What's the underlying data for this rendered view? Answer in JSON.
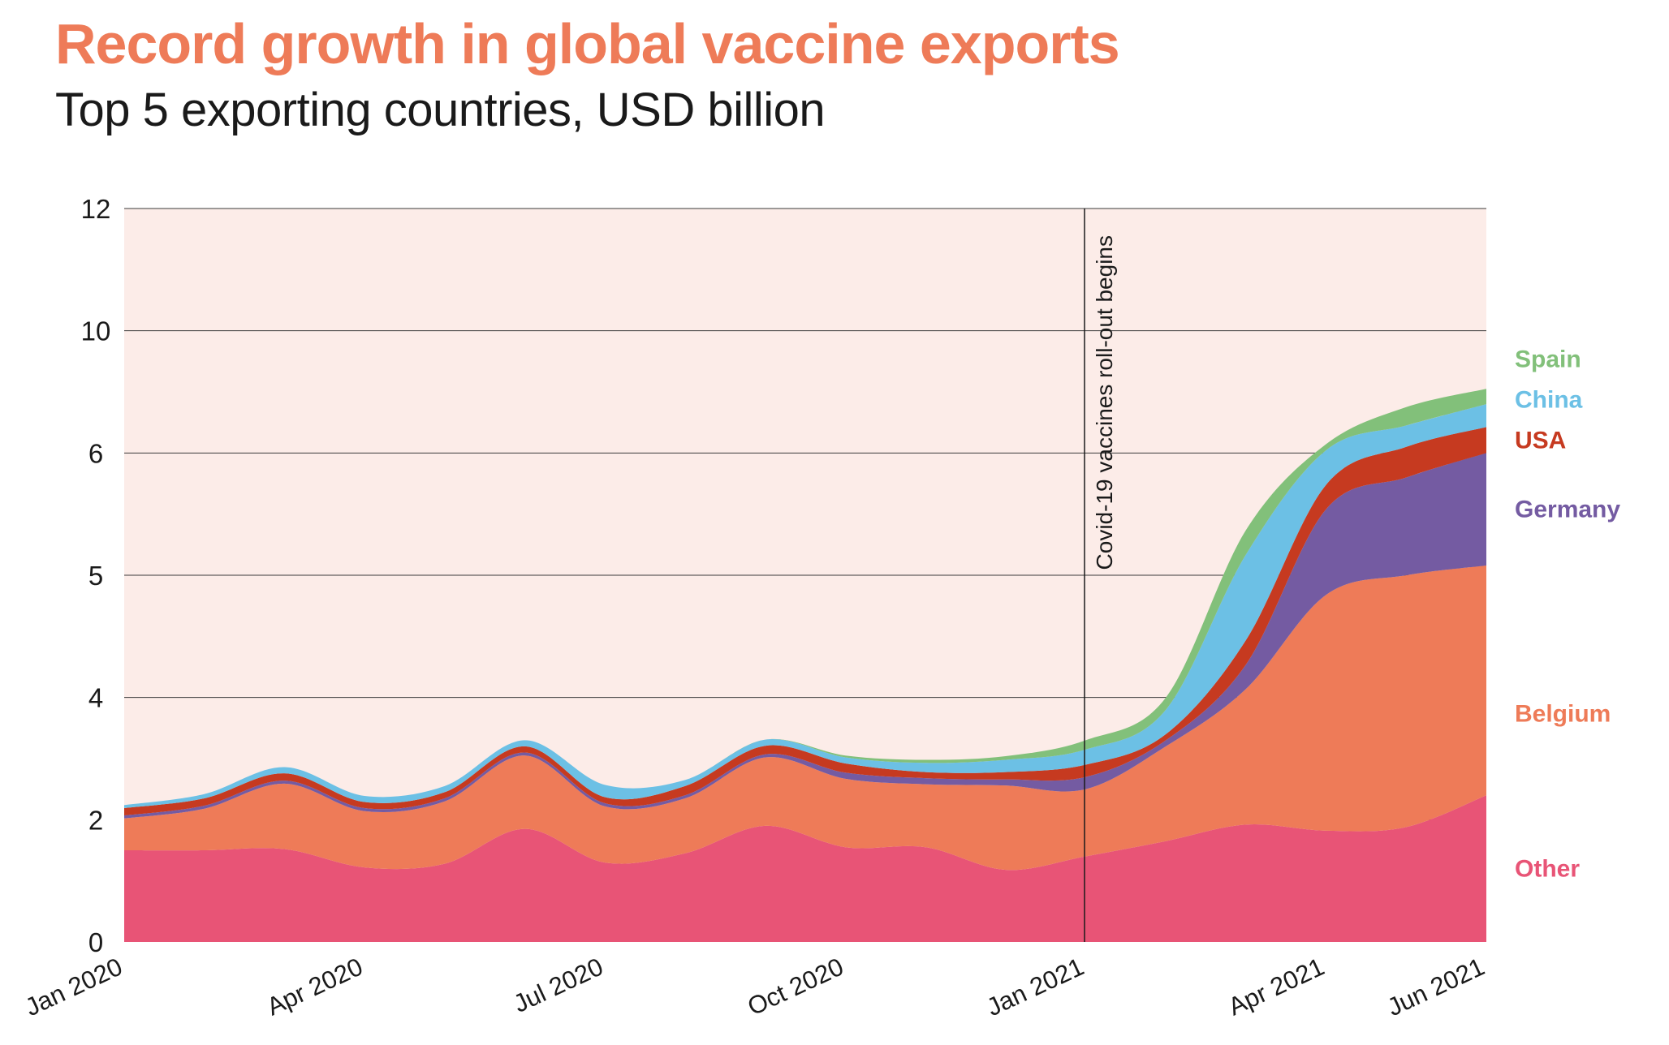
{
  "title": "Record growth in global vaccine exports",
  "subtitle": "Top 5 exporting countries, USD billion",
  "chart_data": {
    "type": "area",
    "stacked": true,
    "x": [
      "Jan 2020",
      "Feb 2020",
      "Mar 2020",
      "Apr 2020",
      "May 2020",
      "Jun 2020",
      "Jul 2020",
      "Aug 2020",
      "Sep 2020",
      "Oct 2020",
      "Nov 2020",
      "Dec 2020",
      "Jan 2021",
      "Feb 2021",
      "Mar 2021",
      "Apr 2021",
      "May 2021",
      "Jun 2021"
    ],
    "x_tick_labels": [
      "Jan 2020",
      "Apr 2020",
      "Jul 2020",
      "Oct 2020",
      "Jan 2021",
      "Apr 2021",
      "Jun 2021"
    ],
    "y_tick_labels": [
      "0",
      "2",
      "4",
      "5",
      "6",
      "10",
      "12"
    ],
    "grid": true,
    "legend_position": "right",
    "series": [
      {
        "name": "Other",
        "color": "#e85476",
        "values": [
          1.5,
          1.5,
          1.52,
          1.22,
          1.28,
          1.85,
          1.3,
          1.45,
          1.9,
          1.55,
          1.55,
          1.18,
          1.4,
          1.65,
          1.92,
          1.82,
          1.88,
          2.4
        ]
      },
      {
        "name": "Belgium",
        "color": "#ee7b58",
        "values": [
          0.52,
          0.68,
          1.07,
          0.92,
          1.02,
          1.2,
          0.92,
          0.9,
          1.12,
          1.12,
          1.03,
          1.38,
          1.1,
          1.55,
          2.15,
          3.02,
          3.12,
          2.68
        ]
      },
      {
        "name": "Germany",
        "color": "#745ba2",
        "values": [
          0.05,
          0.05,
          0.05,
          0.05,
          0.05,
          0.05,
          0.05,
          0.05,
          0.05,
          0.1,
          0.1,
          0.1,
          0.2,
          0.1,
          0.2,
          0.7,
          0.8,
          0.92
        ]
      },
      {
        "name": "USA",
        "color": "#c63a20",
        "values": [
          0.12,
          0.12,
          0.12,
          0.1,
          0.1,
          0.1,
          0.1,
          0.15,
          0.14,
          0.15,
          0.1,
          0.12,
          0.2,
          0.1,
          0.2,
          0.2,
          0.4,
          0.85
        ]
      },
      {
        "name": "China",
        "color": "#6cc0e5",
        "values": [
          0.05,
          0.07,
          0.1,
          0.1,
          0.1,
          0.1,
          0.2,
          0.1,
          0.1,
          0.1,
          0.15,
          0.2,
          0.25,
          0.4,
          0.7,
          0.35,
          0.7,
          0.75
        ]
      },
      {
        "name": "Spain",
        "color": "#82c07a",
        "values": [
          0.0,
          0.0,
          0.0,
          0.0,
          0.0,
          0.0,
          0.0,
          0.0,
          0.0,
          0.03,
          0.05,
          0.06,
          0.15,
          0.2,
          0.2,
          0.2,
          0.6,
          0.5
        ]
      }
    ],
    "annotation": {
      "x": "Jan 2021",
      "text": "Covid-19 vaccines roll-out begins"
    }
  }
}
